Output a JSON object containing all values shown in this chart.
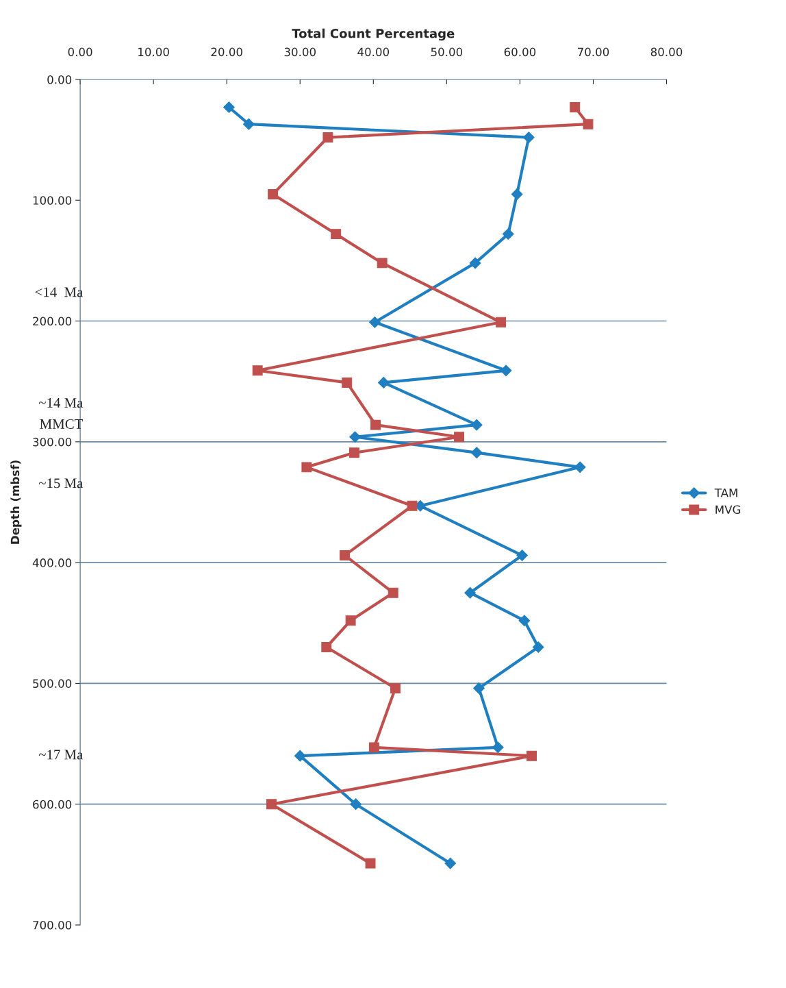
{
  "chart_data": {
    "type": "line",
    "xlabel": "Total Count Percentage",
    "ylabel": "Depth (mbsf)",
    "xlim": [
      0,
      80
    ],
    "xticks": [
      {
        "value": 0,
        "label": "0.00"
      },
      {
        "value": 10,
        "label": "10.00"
      },
      {
        "value": 20,
        "label": "20.00"
      },
      {
        "value": 30,
        "label": "30.00"
      },
      {
        "value": 40,
        "label": "40.00"
      },
      {
        "value": 50,
        "label": "50.00"
      },
      {
        "value": 60,
        "label": "60.00"
      },
      {
        "value": 70,
        "label": "70.00"
      },
      {
        "value": 80,
        "label": "80.00"
      }
    ],
    "ylim": [
      700,
      0
    ],
    "yticks": [
      {
        "value": 0,
        "label": "0.00"
      },
      {
        "value": 100,
        "label": "100.00"
      },
      {
        "value": 200,
        "label": "200.00"
      },
      {
        "value": 300,
        "label": "300.00"
      },
      {
        "value": 400,
        "label": "400.00"
      },
      {
        "value": 500,
        "label": "500.00"
      },
      {
        "value": 600,
        "label": "600.00"
      },
      {
        "value": 700,
        "label": "700.00"
      }
    ],
    "series": [
      {
        "name": "TAM",
        "color": "#1f7fc0",
        "marker": "diamond",
        "x": [
          20.3,
          23.0,
          61.2,
          59.6,
          58.4,
          53.9,
          40.2,
          58.1,
          41.4,
          54.1,
          37.5,
          54.1,
          68.2,
          46.4,
          60.3,
          53.2,
          60.6,
          62.5,
          54.4,
          57.0,
          30.0,
          37.6,
          50.5
        ],
        "values": [
          23,
          37,
          48,
          95,
          128,
          152,
          201,
          241,
          251,
          286,
          296,
          309,
          321,
          353,
          394,
          425,
          448,
          470,
          504,
          553,
          560,
          600,
          649
        ]
      },
      {
        "name": "MVG",
        "color": "#c0504d",
        "marker": "square",
        "x": [
          67.5,
          69.3,
          33.8,
          26.3,
          34.9,
          41.2,
          57.4,
          24.2,
          36.4,
          40.3,
          51.7,
          37.4,
          30.9,
          45.3,
          36.1,
          42.7,
          36.9,
          33.6,
          43.0,
          40.1,
          61.6,
          26.1,
          39.6
        ],
        "values": [
          23,
          37,
          48,
          95,
          128,
          152,
          201,
          241,
          251,
          286,
          296,
          309,
          321,
          353,
          394,
          425,
          448,
          470,
          504,
          553,
          560,
          600,
          649
        ]
      }
    ],
    "ref_lines": [
      {
        "axis": "y",
        "value": 200
      },
      {
        "axis": "y",
        "value": 300
      },
      {
        "axis": "y",
        "value": 400
      },
      {
        "axis": "y",
        "value": 500
      },
      {
        "axis": "y",
        "value": 600
      }
    ],
    "annotations": [
      "<14  Ma",
      "~14 Ma",
      "MMCT",
      "~15 Ma",
      "~17 Ma"
    ],
    "legend": "right",
    "grid": false
  }
}
